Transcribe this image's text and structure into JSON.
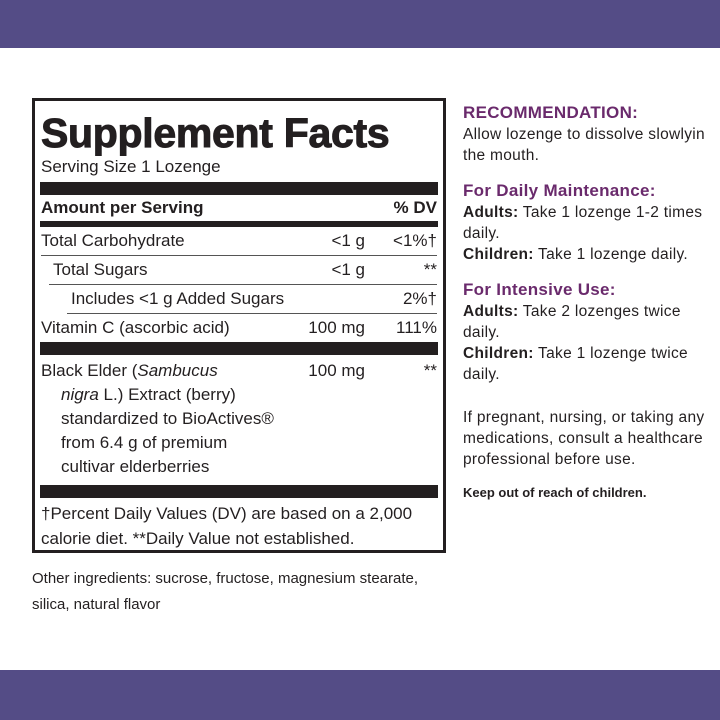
{
  "colors": {
    "band": "#544c86",
    "heading": "#6a2a6c"
  },
  "facts": {
    "title": "Supplement Facts",
    "serving": "Serving Size 1 Lozenge",
    "amount_header": "Amount per Serving",
    "dv_header": "% DV",
    "rows": [
      {
        "name": "Total Carbohydrate",
        "amount": "<1 g",
        "dv": "<1%†"
      },
      {
        "name": "Total Sugars",
        "amount": "<1 g",
        "dv": "**"
      },
      {
        "name": "Includes <1 g Added Sugars",
        "amount": "",
        "dv": "2%†"
      },
      {
        "name": "Vitamin C (ascorbic acid)",
        "amount": "100 mg",
        "dv": "111%"
      }
    ],
    "elder": {
      "line1a": "Black Elder (",
      "line1b": "Sambucus",
      "line2a": "nigra",
      "line2b": " L.) Extract (berry)",
      "line3": "standardized to BioActives®",
      "line4": "from 6.4 g of premium",
      "line5": "cultivar elderberries",
      "amount": "100 mg",
      "dv": "**"
    },
    "footnote1": "†Percent Daily Values (DV) are based on a 2,000",
    "footnote2": "calorie diet. **Daily Value not established."
  },
  "other_ingredients": {
    "line1": "Other ingredients: sucrose, fructose, magnesium stearate,",
    "line2": "silica, natural flavor"
  },
  "directions": {
    "rec_title": "RECOMMENDATION:",
    "rec_text": "Allow lozenge to dissolve slowlyin the mouth.",
    "daily_title": "For Daily Maintenance:",
    "daily_adults_label": "Adults:",
    "daily_adults": " Take 1 lozenge 1-2 times daily.",
    "daily_children_label": "Children:",
    "daily_children": " Take 1 lozenge daily.",
    "intensive_title": "For Intensive Use:",
    "int_adults_label": "Adults:",
    "int_adults": " Take 2 lozenges twice daily.",
    "int_children_label": "Children:",
    "int_children": " Take 1 lozenge twice daily.",
    "warning": "If pregnant, nursing, or taking any medications, consult a healthcare professional before use.",
    "keep_out": "Keep out of reach of children."
  }
}
